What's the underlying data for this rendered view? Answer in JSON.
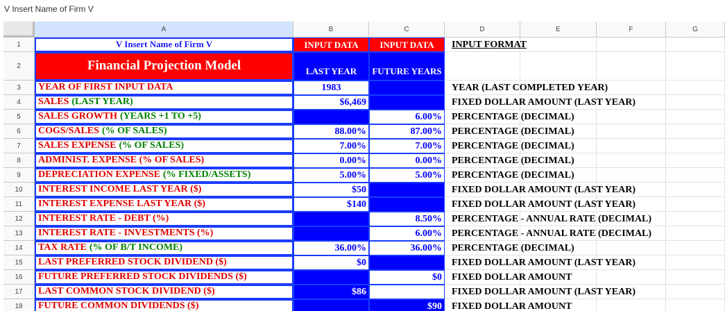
{
  "formula_bar": "V Insert Name of Firm V",
  "columns": [
    "A",
    "B",
    "C",
    "D",
    "E",
    "F",
    "G"
  ],
  "rows": [
    {
      "n": "1",
      "a": [
        "V Insert Name of Firm V"
      ],
      "b": {
        "text": "INPUT DATA",
        "fill": "#ff0000"
      },
      "c": {
        "text": "INPUT DATA",
        "fill": "#ff0000"
      },
      "d": "INPUT FORMAT"
    },
    {
      "n": "2",
      "a": [
        "Financial Projection Model"
      ],
      "b": {
        "text": "LAST YEAR",
        "fill": "#0000ff"
      },
      "c": {
        "text": "FUTURE YEARS",
        "fill": "#0000ff"
      }
    },
    {
      "n": "3",
      "a": [
        "YEAR OF FIRST INPUT DATA"
      ],
      "b": {
        "text": "1983"
      },
      "c": {
        "fill": "#0000ff"
      },
      "d": "YEAR (LAST COMPLETED YEAR)"
    },
    {
      "n": "4",
      "a": [
        "SALES",
        "(LAST YEAR)"
      ],
      "b": {
        "text": "$6,469"
      },
      "c": {
        "fill": "#0000ff"
      },
      "d": "FIXED DOLLAR AMOUNT (LAST YEAR)"
    },
    {
      "n": "5",
      "a": [
        "SALES GROWTH",
        "(YEARS +1 TO +5)"
      ],
      "b": {
        "fill": "#0000ff"
      },
      "c": {
        "text": "6.00%"
      },
      "d": "PERCENTAGE (DECIMAL)"
    },
    {
      "n": "6",
      "a": [
        "COGS/SALES",
        "(% OF SALES)"
      ],
      "b": {
        "text": "88.00%"
      },
      "c": {
        "text": "87.00%"
      },
      "d": "PERCENTAGE (DECIMAL)"
    },
    {
      "n": "7",
      "a": [
        "SALES EXPENSE",
        "(% OF SALES)"
      ],
      "b": {
        "text": "7.00%"
      },
      "c": {
        "text": "7.00%"
      },
      "d": "PERCENTAGE (DECIMAL)"
    },
    {
      "n": "8",
      "a": [
        "ADMINIST. EXPENSE (% OF SALES)"
      ],
      "b": {
        "text": "0.00%"
      },
      "c": {
        "text": "0.00%"
      },
      "d": "PERCENTAGE (DECIMAL)"
    },
    {
      "n": "9",
      "a": [
        "DEPRECIATION EXPENSE",
        "(% FIXED/ASSETS)"
      ],
      "b": {
        "text": "5.00%"
      },
      "c": {
        "text": "5.00%"
      },
      "d": "PERCENTAGE (DECIMAL)"
    },
    {
      "n": "10",
      "a": [
        "INTEREST INCOME LAST YEAR ($)"
      ],
      "b": {
        "text": "$50"
      },
      "c": {
        "fill": "#0000ff"
      },
      "d": "FIXED DOLLAR AMOUNT (LAST YEAR)"
    },
    {
      "n": "11",
      "a": [
        "INTEREST EXPENSE LAST YEAR ($)"
      ],
      "b": {
        "text": "$140"
      },
      "c": {
        "fill": "#0000ff"
      },
      "d": "FIXED DOLLAR AMOUNT (LAST YEAR)"
    },
    {
      "n": "12",
      "a": [
        "INTEREST RATE - DEBT (%)"
      ],
      "b": {
        "fill": "#0000ff"
      },
      "c": {
        "text": "8.50%"
      },
      "d": "PERCENTAGE - ANNUAL RATE  (DECIMAL)"
    },
    {
      "n": "13",
      "a": [
        "INTEREST RATE - INVESTMENTS (%)"
      ],
      "b": {
        "fill": "#0000ff"
      },
      "c": {
        "text": "6.00%"
      },
      "d": "PERCENTAGE - ANNUAL RATE (DECIMAL)"
    },
    {
      "n": "14",
      "a": [
        "TAX RATE",
        "(% OF B/T INCOME)"
      ],
      "b": {
        "text": "36.00%"
      },
      "c": {
        "text": "36.00%"
      },
      "d": "PERCENTAGE (DECIMAL)"
    },
    {
      "n": "15",
      "a": [
        "LAST PREFERRED STOCK DIVIDEND ($)"
      ],
      "b": {
        "text": "$0"
      },
      "c": {
        "fill": "#0000ff"
      },
      "d": "FIXED DOLLAR AMOUNT (LAST YEAR)"
    },
    {
      "n": "16",
      "a": [
        "FUTURE PREFERRED STOCK DIVIDENDS ($)"
      ],
      "b": {
        "fill": "#0000ff"
      },
      "c": {
        "text": "$0"
      },
      "d": "FIXED DOLLAR AMOUNT"
    },
    {
      "n": "17",
      "a": [
        "LAST COMMON STOCK DIVIDEND ($)"
      ],
      "b": {
        "text": "$86",
        "fill": "#0000ff"
      },
      "c": {},
      "d": "FIXED DOLLAR AMOUNT (LAST YEAR)"
    },
    {
      "n": "18",
      "a": [
        "FUTURE COMMON DIVIDENDS ($)"
      ],
      "b": {
        "fill": "#0000ff"
      },
      "c": {
        "text": "$90",
        "fill": "#0000ff"
      },
      "d": "FIXED DOLLAR AMOUNT"
    }
  ]
}
